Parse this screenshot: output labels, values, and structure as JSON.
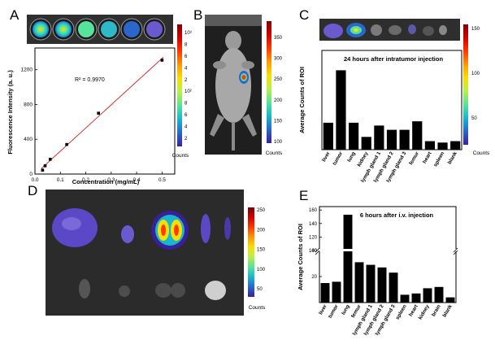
{
  "colors": {
    "jet": [
      "#7f0000",
      "#d40000",
      "#ff3a00",
      "#ff9a00",
      "#f7e000",
      "#b8f04a",
      "#56e39a",
      "#17b7d0",
      "#2a66cc",
      "#3a1f9a"
    ],
    "bar": "#000000",
    "fit_line": "#d03030",
    "bg_photo": "#2a2a2a"
  },
  "panels": {
    "A": {
      "letter": "A",
      "ylabel": "Fluorescence Intensity (a. u.)",
      "xlabel": "Concentration (mg/mL)",
      "r2": "R² = 0.9970",
      "colorbar_labels": [
        "10³",
        "8",
        "6",
        "4",
        "2",
        "10²",
        "8",
        "6",
        "4",
        "2"
      ],
      "counts": "Counts"
    },
    "B": {
      "letter": "B",
      "colorbar_labels": [
        "350",
        "300",
        "250",
        "200",
        "150",
        "100"
      ],
      "counts": "Counts"
    },
    "C": {
      "letter": "C",
      "annotation": "24 hours after intratumor injection",
      "ylabel": "Average Counts of ROI",
      "colorbar_labels": [
        "150",
        "100",
        "50"
      ],
      "counts": "Counts"
    },
    "D": {
      "letter": "D",
      "colorbar_labels": [
        "250",
        "200",
        "150",
        "100",
        "50"
      ],
      "counts": "Counts"
    },
    "E": {
      "letter": "E",
      "annotation": "6 hours after i.v. injection",
      "ylabel": "Average Counts of ROI"
    }
  },
  "chart_data": [
    {
      "id": "A",
      "type": "scatter",
      "x": [
        0.03,
        0.04,
        0.06,
        0.125,
        0.25,
        0.5
      ],
      "y": [
        45,
        95,
        170,
        340,
        700,
        1310
      ],
      "xlabel": "Concentration (mg/mL)",
      "ylabel": "Fluorescence Intensity (a. u.)",
      "xlim": [
        0,
        0.55
      ],
      "ylim": [
        0,
        1450
      ],
      "xticks": [
        "0.0",
        "0.1",
        "0.2",
        "0.3",
        "0.4",
        "0.5"
      ],
      "yticks": [
        "0",
        "400",
        "800",
        "1200"
      ],
      "fit": "linear",
      "annotation": "R² = 0.9970"
    },
    {
      "id": "C",
      "type": "bar",
      "title": "24 hours after intratumor injection",
      "categories": [
        "liver",
        "tumor",
        "lung",
        "kidney",
        "lymph gland 1",
        "lymph gland 2",
        "lymph gland 3",
        "femur",
        "heart",
        "spleen",
        "blank"
      ],
      "values": [
        19,
        56,
        19,
        9,
        17,
        14,
        14,
        20,
        6,
        5,
        6
      ],
      "ylabel": "Average Counts of ROI",
      "ylim": [
        0,
        70
      ]
    },
    {
      "id": "E",
      "type": "bar",
      "title": "6 hours after i.v. injection",
      "categories": [
        "liver",
        "tumor",
        "lung",
        "femur",
        "lymph gland 1",
        "lymph gland 2",
        "lymph gland 3",
        "spleen",
        "heart",
        "kidney",
        "brain",
        "blank"
      ],
      "values": [
        15,
        16,
        153,
        31,
        29,
        27,
        23,
        6,
        7,
        11,
        12,
        4
      ],
      "ylabel": "Average Counts of ROI",
      "yticks": [
        "20",
        "40",
        "100",
        "120",
        "140",
        "160"
      ],
      "axis_break": [
        40,
        100
      ]
    }
  ]
}
